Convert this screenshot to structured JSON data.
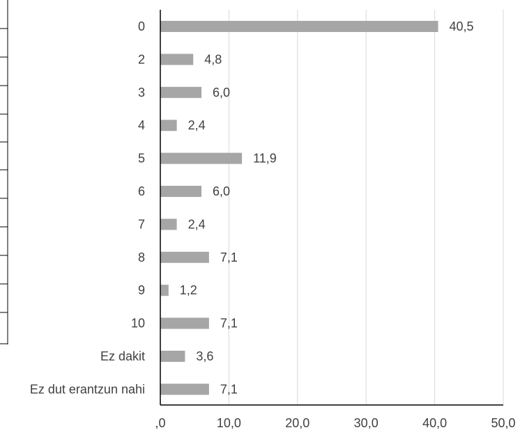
{
  "colors": {
    "bar": "#a6a6a6",
    "grid": "#d9d9d9",
    "axis": "#000000",
    "text": "#404040",
    "background": "#ffffff"
  },
  "chart_data": {
    "type": "bar",
    "orientation": "horizontal",
    "categories": [
      "0",
      "2",
      "3",
      "4",
      "5",
      "6",
      "7",
      "8",
      "9",
      "10",
      "Ez dakit",
      "Ez dut erantzun nahi"
    ],
    "values": [
      40.5,
      4.8,
      6.0,
      2.4,
      11.9,
      6.0,
      2.4,
      7.1,
      1.2,
      7.1,
      3.6,
      7.1
    ],
    "value_labels": [
      "40,5",
      "4,8",
      "6,0",
      "2,4",
      "11,9",
      "6,0",
      "2,4",
      "7,1",
      "1,2",
      "7,1",
      "3,6",
      "7,1"
    ],
    "x_ticks": [
      0,
      10,
      20,
      30,
      40,
      50
    ],
    "x_tick_labels": [
      ",0",
      "10,0",
      "20,0",
      "30,0",
      "40,0",
      "50,0"
    ],
    "xlim": [
      0,
      50
    ],
    "title": "",
    "xlabel": "",
    "ylabel": "",
    "grid": "vertical",
    "legend": "none"
  }
}
